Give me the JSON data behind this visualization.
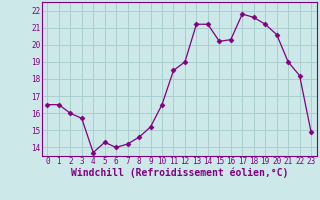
{
  "x": [
    0,
    1,
    2,
    3,
    4,
    5,
    6,
    7,
    8,
    9,
    10,
    11,
    12,
    13,
    14,
    15,
    16,
    17,
    18,
    19,
    20,
    21,
    22,
    23
  ],
  "y": [
    16.5,
    16.5,
    16.0,
    15.7,
    13.7,
    14.3,
    14.0,
    14.2,
    14.6,
    15.2,
    16.5,
    18.5,
    19.0,
    21.2,
    21.2,
    20.2,
    20.3,
    21.8,
    21.6,
    21.2,
    20.6,
    19.0,
    18.2,
    14.9
  ],
  "line_color": "#800080",
  "marker": "D",
  "marker_size": 2.5,
  "bg_color": "#cce8e8",
  "grid_color": "#aacfcf",
  "xlabel": "Windchill (Refroidissement éolien,°C)",
  "ylabel_ticks": [
    14,
    15,
    16,
    17,
    18,
    19,
    20,
    21,
    22
  ],
  "ylim": [
    13.5,
    22.5
  ],
  "xlim": [
    -0.5,
    23.5
  ],
  "xticks": [
    0,
    1,
    2,
    3,
    4,
    5,
    6,
    7,
    8,
    9,
    10,
    11,
    12,
    13,
    14,
    15,
    16,
    17,
    18,
    19,
    20,
    21,
    22,
    23
  ],
  "tick_label_color": "#800080",
  "xlabel_color": "#800080",
  "tick_fontsize": 5.5,
  "xlabel_fontsize": 7.0
}
